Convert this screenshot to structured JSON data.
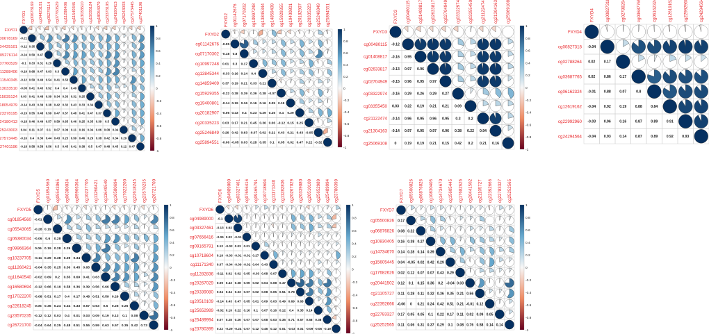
{
  "chart_data": [
    {
      "type": "heatmap",
      "subtype": "correlation-matrix (upper: pie glyphs, lower: coefficients)",
      "labels": [
        "FXYD1",
        "cg00678169",
        "cg04425101",
        "cg05276114",
        "cg07760529",
        "cg11288406",
        "cg11540345",
        "cg13033510",
        "cg15035124",
        "cg18054979",
        "cg23378195",
        "cg24180413",
        "cg25243003",
        "cg27573445",
        "cg27401196"
      ],
      "lower_values": [
        [],
        [
          -0.21
        ],
        [
          -0.12,
          0.35
        ],
        [
          -0.24,
          0.59,
          0.47
        ],
        [
          -0.1,
          0.33,
          0.31,
          0.29
        ],
        [
          -0.19,
          0.68,
          0.47,
          0.63,
          0.3
        ],
        [
          -0.12,
          0.59,
          0.49,
          0.54,
          0.41,
          0.53
        ],
        [
          -0.08,
          0.41,
          0.43,
          0.52,
          0.4,
          0.4,
          0.49
        ],
        [
          0.03,
          0.41,
          0.48,
          0.39,
          0.34,
          0.33,
          0.31,
          0.25
        ],
        [
          -0.14,
          0.43,
          0.39,
          0.38,
          0.42,
          0.32,
          0.43,
          0.33,
          0.34
        ],
        [
          -0.19,
          0.55,
          0.48,
          0.59,
          0.47,
          0.57,
          0.48,
          0.41,
          0.47,
          0.37
        ],
        [
          -0.18,
          0.46,
          0.49,
          0.57,
          0.59,
          0.65,
          0.46,
          0.25,
          0.35,
          0.39,
          0.5
        ],
        [
          0.04,
          0.11,
          0.07,
          0.1,
          0.07,
          0.09,
          0.11,
          0.16,
          0.04,
          0.06,
          0.08,
          0.04
        ],
        [
          -0.16,
          0.4,
          0.36,
          0.44,
          0.43,
          0.23,
          0.59,
          0.46,
          0.29,
          0.38,
          0.42,
          0.34,
          0.29
        ],
        [
          -0.18,
          0.58,
          0.58,
          0.56,
          0.5,
          0.45,
          0.41,
          0.38,
          0.5,
          0.47,
          0.48,
          0.45,
          0.12,
          0.47
        ]
      ],
      "colorbar_ticks": [
        "1",
        "0.8",
        "0.6",
        "0.4",
        "0.2",
        "0",
        "-0.2",
        "-0.4",
        "-0.6",
        "-0.8",
        "-1"
      ],
      "range": [
        -1,
        1
      ]
    },
    {
      "type": "heatmap",
      "subtype": "correlation-matrix (upper: pie glyphs, lower: coefficients)",
      "labels": [
        "FXYD2",
        "cg01142676",
        "cg07170302",
        "cg10997248",
        "cg13845344",
        "cg14859409",
        "cg15929355",
        "cg19400801",
        "cg20182907",
        "cg20335223",
        "cg25246849",
        "cg25894551"
      ],
      "lower_values": [
        [],
        [
          -0.05
        ],
        [
          -0.18,
          0.8
        ],
        [
          0.01,
          0.3,
          0.17
        ],
        [
          -0.33,
          0.16,
          0.14,
          0.4
        ],
        [
          0.37,
          0.19,
          0.21,
          0.33,
          0.21
        ],
        [
          -0.22,
          0.38,
          0.39,
          0.39,
          0.38,
          -0.07
        ],
        [
          -0.14,
          0.19,
          0.16,
          0.16,
          0.16,
          0.05,
          0.19
        ],
        [
          -0.06,
          0.43,
          0.4,
          0.23,
          0.29,
          0.26,
          0.4,
          0.29
        ],
        [
          0.03,
          0.17,
          0.21,
          0.45,
          0.36,
          0.06,
          -0.12,
          0.15,
          0.25
        ],
        [
          0.26,
          0.42,
          0.63,
          -0.07,
          0.02,
          0.21,
          0.43,
          0.21,
          0.43,
          -0.05
        ],
        [
          -0.06,
          -0.05,
          0.03,
          0.28,
          0.35,
          0.1,
          0.05,
          0.02,
          0.47,
          0.22,
          -0.32
        ]
      ],
      "colorbar_ticks": [
        "1",
        "0.8",
        "0.6",
        "0.4",
        "0.2",
        "0",
        "-0.2",
        "-0.4",
        "-0.6",
        "-0.8",
        "-1"
      ],
      "range": [
        -1,
        1
      ]
    },
    {
      "type": "heatmap",
      "subtype": "correlation-matrix (upper: pie glyphs, lower: coefficients)",
      "labels": [
        "FXYD3",
        "cg00480115",
        "cg01408817",
        "cg02633817",
        "cg02704949",
        "cg03322974",
        "cg03355450",
        "cg21122474",
        "cg21304163",
        "cg25069108"
      ],
      "lower_values": [
        [],
        [
          -0.12
        ],
        [
          -0.16,
          0.95
        ],
        [
          -0.13,
          0.97,
          0.96
        ],
        [
          -0.15,
          0.96,
          0.95,
          0.97
        ],
        [
          -0.16,
          0.29,
          0.26,
          0.29,
          0.27
        ],
        [
          0.03,
          0.22,
          0.19,
          0.21,
          0.21,
          0.09
        ],
        [
          -0.14,
          0.96,
          0.95,
          0.96,
          0.95,
          0.3,
          0.2
        ],
        [
          -0.14,
          0.97,
          0.95,
          0.97,
          0.96,
          0.38,
          0.22,
          0.94
        ],
        [
          0,
          0.19,
          0.19,
          0.21,
          0.15,
          0.42,
          0.2,
          0.21,
          0.16
        ]
      ],
      "colorbar_ticks": [
        "1",
        "0.8",
        "0.6",
        "0.4",
        "0.2",
        "0",
        "-0.2",
        "-0.4",
        "-0.6",
        "-0.8",
        "-1"
      ],
      "range": [
        -1,
        1
      ]
    },
    {
      "type": "heatmap",
      "subtype": "correlation-matrix (upper: pie glyphs, lower: coefficients)",
      "labels": [
        "FXYD4",
        "cg00827318",
        "cg02788264",
        "cg03687765",
        "cg06162324",
        "cg12619162",
        "cg22992960",
        "cg24294564"
      ],
      "lower_values": [
        [],
        [
          -0.04
        ],
        [
          0.02,
          0.17
        ],
        [
          0.02,
          0.86,
          0.17
        ],
        [
          -0.01,
          0.88,
          0.07,
          0.8
        ],
        [
          -0.04,
          0.92,
          0.19,
          0.88,
          0.84
        ],
        [
          -0.03,
          0.96,
          0.16,
          0.87,
          0.89,
          0.91
        ],
        [
          -0.04,
          0.93,
          0.14,
          0.87,
          0.89,
          0.92,
          0.93
        ]
      ],
      "colorbar_ticks": [
        "1",
        "0.8",
        "0.6",
        "0.4",
        "0.2",
        "0",
        "-0.2",
        "-0.4",
        "-0.6",
        "-0.8",
        "-1"
      ],
      "range": [
        -1,
        1
      ]
    },
    {
      "type": "heatmap",
      "subtype": "correlation-matrix (upper: pie glyphs, lower: coefficients)",
      "labels": [
        "FXYD5",
        "cg01854560",
        "cg05543065",
        "cg06380034",
        "cg09966364",
        "cg10237705",
        "cg11260421",
        "cg11640540",
        "cg16580694",
        "cg17022200",
        "cg22618245",
        "cg23570235",
        "cg26721700"
      ],
      "lower_values": [
        [],
        [
          -0.01
        ],
        [
          -0.28,
          0.19
        ],
        [
          -0.06,
          0.6,
          0.28
        ],
        [
          0.06,
          0.19,
          0.28,
          0.29
        ],
        [
          -0.11,
          0.29,
          0.38,
          0.29,
          0.34
        ],
        [
          -0.04,
          0.35,
          0.25,
          0.36,
          0.45,
          0.65
        ],
        [
          -0.02,
          0.69,
          0.2,
          0.55,
          0.69,
          0.41,
          0.63
        ],
        [
          -0.12,
          0.66,
          0.19,
          0.58,
          0.36,
          0.39,
          0.56,
          0.66
        ],
        [
          -0.08,
          0.51,
          0.17,
          0.4,
          0.17,
          0.48,
          0.51,
          0.59,
          0.29
        ],
        [
          0.05,
          0.36,
          0.24,
          0.34,
          0.33,
          0.67,
          0.53,
          0.5,
          0.25,
          0.25
        ],
        [
          -0.12,
          0.12,
          0.03,
          0.4,
          0.01,
          0.03,
          0.09,
          0.19,
          0.13,
          0.1,
          0.08
        ],
        [
          -0.04,
          0.64,
          0.25,
          0.48,
          0.51,
          0.55,
          0.59,
          0.63,
          0.57,
          0.35,
          0.42,
          0.73
        ]
      ],
      "colorbar_ticks": [
        "1",
        "0.8",
        "0.6",
        "0.4",
        "0.2",
        "0",
        "-0.2",
        "-0.4",
        "-0.6",
        "-0.8",
        "-1"
      ],
      "range": [
        -1,
        1
      ]
    },
    {
      "type": "heatmap",
      "subtype": "correlation-matrix (upper: pie glyphs, lower: coefficients)",
      "labels": [
        "FXYD6",
        "cg04989000",
        "cg03327461",
        "cg07656416",
        "cg09165791",
        "cg10718604",
        "cg11171340",
        "cg11282836",
        "cg20267029",
        "cg20339080",
        "cg20510109",
        "cg25652989",
        "cg25489994",
        "cg23780399"
      ],
      "lower_values": [
        [],
        [
          -0.1
        ],
        [
          -0.13,
          0.92
        ],
        [
          -0.05,
          0.02,
          -0.01
        ],
        [
          0.12,
          -0.02,
          0.03,
          0.01
        ],
        [
          0.19,
          -0.03,
          -0.01,
          -0.01,
          0.27
        ],
        [
          0.07,
          -0.04,
          -0.09,
          -0.02,
          0.04,
          0.43
        ],
        [
          -0.11,
          0.02,
          0.02,
          0.05,
          -0.03,
          0.08,
          0.07
        ],
        [
          0.09,
          0.43,
          0.38,
          0.09,
          0.02,
          0.04,
          0.08,
          0.47
        ],
        [
          0.04,
          0.34,
          0.33,
          0.07,
          0.02,
          0.08,
          0.05,
          0.51,
          0.78
        ],
        [
          -0.14,
          0.43,
          0.47,
          0.05,
          0.01,
          0.09,
          0.03,
          0.49,
          0.69,
          0.68
        ],
        [
          -0.02,
          0.19,
          0.22,
          0.16,
          0.1,
          0.07,
          0.16,
          0.12,
          0.4,
          0.35,
          0.14
        ],
        [
          0.07,
          0.28,
          0.26,
          0.07,
          0.07,
          0.08,
          0.03,
          0.35,
          0.71,
          0.57,
          0.58,
          0.38
        ],
        [
          0.22,
          -0.29,
          -0.24,
          0.07,
          0.12,
          0.46,
          0.12,
          0.01,
          -0.03,
          0.01,
          -0.09,
          -0.06,
          -0.19
        ]
      ],
      "colorbar_ticks": [
        "1",
        "0.8",
        "0.6",
        "0.4",
        "0.2",
        "0",
        "-0.2",
        "-0.4",
        "-0.6",
        "-0.8",
        "-1"
      ],
      "range": [
        -1,
        1
      ]
    },
    {
      "type": "heatmap",
      "subtype": "correlation-matrix (upper: pie glyphs, lower: coefficients)",
      "labels": [
        "FXYD7",
        "cg05500826",
        "cg06876826",
        "cg10830405",
        "cg14734670",
        "cg15605445",
        "cg17682626",
        "cg20441502",
        "cg21105727",
        "cg22392666",
        "cg22783327",
        "cg25252565"
      ],
      "lower_values": [
        [],
        [
          0.17
        ],
        [
          0.08,
          0.22
        ],
        [
          0.16,
          0.38,
          0.27
        ],
        [
          0.14,
          0.28,
          0.14,
          0.39
        ],
        [
          0.04,
          -0.05,
          0.02,
          0.42,
          0.29
        ],
        [
          0.02,
          0.12,
          0.07,
          0.07,
          0.43,
          0.29
        ],
        [
          0.12,
          0.1,
          0.15,
          0.36,
          0.2,
          -0.04,
          0.03
        ],
        [
          0.11,
          0.28,
          0.11,
          0.32,
          0.36,
          0.35,
          0.21,
          0.56
        ],
        [
          -0.06,
          0,
          0.21,
          0.24,
          0.42,
          0.51,
          0.21,
          -0.01,
          0.12
        ],
        [
          0.17,
          0.05,
          0.05,
          0.1,
          0.22,
          0.17,
          0.11,
          0.02,
          0.09,
          0.05
        ],
        [
          0.11,
          0.06,
          0.31,
          0.37,
          0.29,
          0.1,
          0.08,
          0.76,
          0.58,
          0.14,
          0.14
        ]
      ],
      "colorbar_ticks": [
        "1",
        "0.8",
        "0.6",
        "0.4",
        "0.2",
        "0",
        "-0.2",
        "-0.4",
        "-0.6",
        "-0.8",
        "-1"
      ],
      "range": [
        -1,
        1
      ]
    }
  ]
}
